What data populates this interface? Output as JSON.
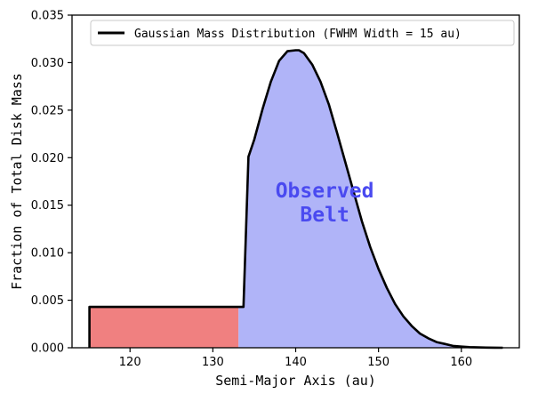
{
  "chart_data": {
    "type": "area",
    "title": "",
    "xlabel": "Semi-Major Axis (au)",
    "ylabel": "Fraction of Total Disk Mass",
    "xlim": [
      113,
      167
    ],
    "ylim": [
      0,
      0.035
    ],
    "xticks": [
      120,
      130,
      140,
      150,
      160
    ],
    "yticks": [
      0.0,
      0.005,
      0.01,
      0.015,
      0.02,
      0.025,
      0.03,
      0.035
    ],
    "ytick_labels": [
      "0.000",
      "0.005",
      "0.010",
      "0.015",
      "0.020",
      "0.025",
      "0.030",
      "0.035"
    ],
    "grid": false,
    "legend": {
      "location": "top-right",
      "entries": [
        "Gaussian Mass Distribution (FWHM Width = 15 au)"
      ]
    },
    "series": [
      {
        "name": "Gaussian Mass Distribution (FWHM Width = 15 au)",
        "color": "#000000",
        "x": [
          115.1,
          115.1,
          133.7,
          133.7,
          134.3,
          135,
          136,
          137,
          138,
          139,
          140,
          140.4,
          141,
          142,
          143,
          144,
          145,
          146,
          147,
          148,
          149,
          150,
          151,
          152,
          153,
          154,
          155,
          156,
          157,
          158,
          159,
          160,
          161,
          162,
          163,
          164,
          165
        ],
        "y": [
          0.0,
          0.0043,
          0.0043,
          0.0043,
          0.0201,
          0.0219,
          0.0251,
          0.028,
          0.0302,
          0.0312,
          0.0313,
          0.0313,
          0.031,
          0.0298,
          0.028,
          0.0256,
          0.0226,
          0.0195,
          0.0164,
          0.0133,
          0.0106,
          0.0083,
          0.0063,
          0.0046,
          0.0033,
          0.0023,
          0.0015,
          0.001,
          0.0006,
          0.0004,
          0.0002,
          0.00012,
          7e-05,
          4e-05,
          2e-05,
          1e-05,
          0.0
        ]
      }
    ],
    "regions": [
      {
        "x_start": 115.1,
        "x_end": 133.1,
        "height": 0.0043,
        "color": "#f08080"
      },
      {
        "x_start": 133.1,
        "x_end": 165,
        "color": "#b0b4f8"
      }
    ],
    "annotations": [
      {
        "text_lines": [
          "Observed",
          "Belt"
        ],
        "x": 143.5,
        "y": 0.0145,
        "color": "#4a4af0"
      }
    ]
  }
}
